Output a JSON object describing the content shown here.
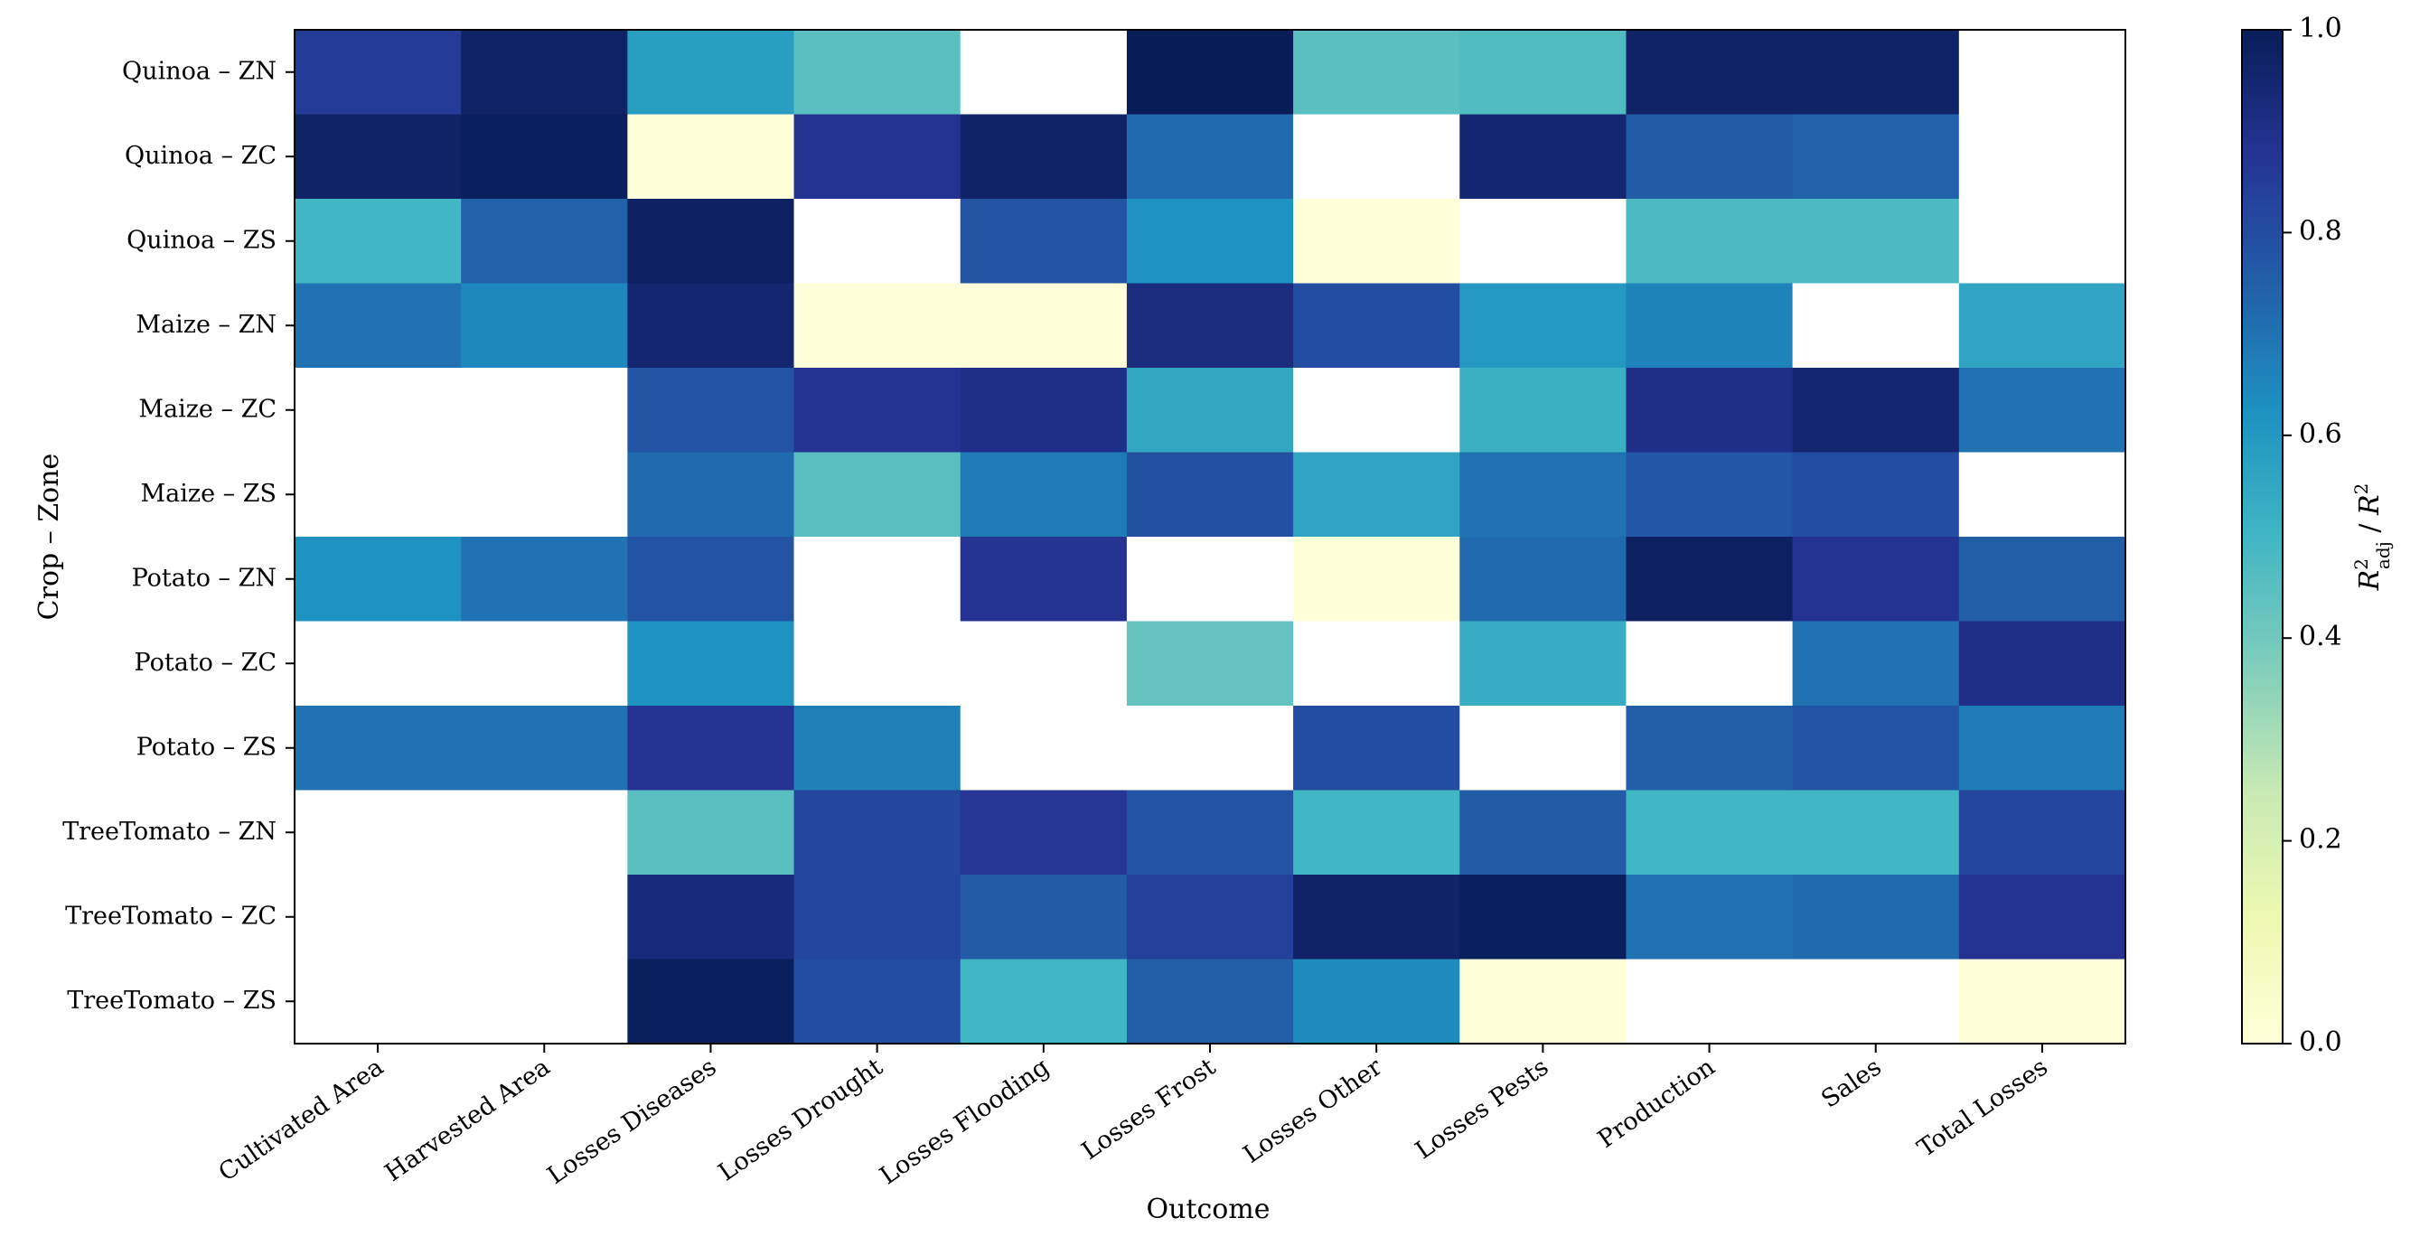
{
  "chart_data": {
    "type": "heatmap",
    "title": "",
    "xlabel": "Outcome",
    "ylabel": "Crop – Zone",
    "x_categories": [
      "Cultivated Area",
      "Harvested Area",
      "Losses Diseases",
      "Losses Drought",
      "Losses Flooding",
      "Losses Frost",
      "Losses Other",
      "Losses Pests",
      "Production",
      "Sales",
      "Total Losses"
    ],
    "y_categories": [
      "Quinoa – ZN",
      "Quinoa – ZC",
      "Quinoa – ZS",
      "Maize – ZN",
      "Maize – ZC",
      "Maize – ZS",
      "Potato – ZN",
      "Potato – ZC",
      "Potato – ZS",
      "TreeTomato – ZN",
      "TreeTomato – ZC",
      "TreeTomato – ZS"
    ],
    "values": [
      [
        0.85,
        0.97,
        0.58,
        0.45,
        null,
        1.0,
        0.45,
        0.47,
        0.97,
        0.97,
        null
      ],
      [
        0.97,
        0.99,
        0.0,
        0.88,
        0.97,
        0.72,
        null,
        0.95,
        0.76,
        0.74,
        null
      ],
      [
        0.5,
        0.74,
        0.98,
        null,
        0.78,
        0.62,
        0.0,
        null,
        0.48,
        0.48,
        null
      ],
      [
        0.7,
        0.65,
        0.95,
        0.0,
        0.0,
        0.92,
        0.8,
        0.6,
        0.66,
        null,
        0.56
      ],
      [
        null,
        null,
        0.78,
        0.88,
        0.9,
        0.55,
        null,
        0.52,
        0.9,
        0.95,
        0.7
      ],
      [
        null,
        null,
        0.72,
        0.45,
        0.68,
        0.79,
        0.56,
        0.7,
        0.77,
        0.8,
        null
      ],
      [
        0.62,
        0.7,
        0.78,
        null,
        0.88,
        null,
        0.0,
        0.72,
        0.98,
        0.88,
        0.75
      ],
      [
        null,
        null,
        0.62,
        null,
        null,
        0.43,
        null,
        0.53,
        null,
        0.7,
        0.9
      ],
      [
        0.7,
        0.7,
        0.88,
        0.67,
        null,
        null,
        0.8,
        null,
        0.75,
        0.78,
        0.68
      ],
      [
        null,
        null,
        0.45,
        0.82,
        0.87,
        0.78,
        0.5,
        0.76,
        0.5,
        0.5,
        0.82
      ],
      [
        null,
        null,
        0.93,
        0.82,
        0.76,
        0.84,
        0.97,
        0.99,
        0.7,
        0.72,
        0.88
      ],
      [
        null,
        null,
        0.99,
        0.8,
        0.5,
        0.75,
        0.64,
        0.0,
        null,
        null,
        0.0
      ]
    ],
    "missing_color": "#ffffff",
    "colormap": "YlGnBu",
    "vmin": 0.0,
    "vmax": 1.0,
    "colorbar": {
      "label": "R²adj / R²",
      "label_main": "R",
      "label_sup": "2",
      "label_sub": "adj",
      "label_sep": " / ",
      "label_main2": "R",
      "label_sup2": "2",
      "ticks": [
        "0.0",
        "0.2",
        "0.4",
        "0.6",
        "0.8",
        "1.0"
      ],
      "tick_values": [
        0.0,
        0.2,
        0.4,
        0.6,
        0.8,
        1.0
      ]
    }
  }
}
